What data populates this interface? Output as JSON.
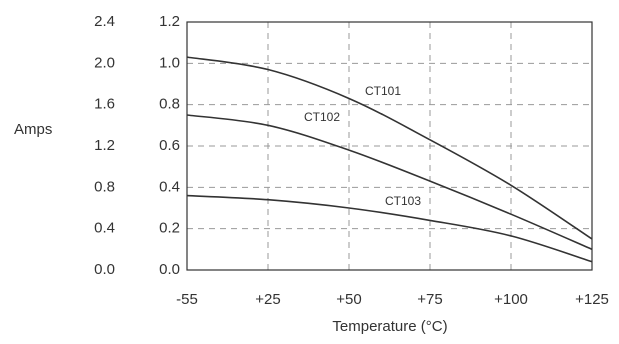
{
  "chart_data": {
    "type": "line",
    "x_label": "Temperature (°C)",
    "y_label": "Amps",
    "categories": [
      "-55",
      "+25",
      "+50",
      "+75",
      "+100",
      "+125"
    ],
    "series": [
      {
        "name": "CT101",
        "color": "#333333",
        "values": [
          1.03,
          0.97,
          0.83,
          0.63,
          0.41,
          0.15
        ]
      },
      {
        "name": "CT102",
        "color": "#333333",
        "values": [
          0.75,
          0.7,
          0.58,
          0.43,
          0.27,
          0.1
        ]
      },
      {
        "name": "CT103",
        "color": "#333333",
        "values": [
          0.36,
          0.34,
          0.3,
          0.24,
          0.165,
          0.04
        ]
      }
    ],
    "ylim": [
      0,
      1.2
    ],
    "yticks": [
      {
        "value": 0,
        "label": "0.0"
      },
      0.2,
      0.4,
      0.6,
      0.8,
      {
        "value": 1,
        "label": "1.0"
      },
      1.2
    ],
    "y2lim": [
      0,
      2.4
    ],
    "y2ticks": [
      {
        "value": 0,
        "label": "0.0"
      },
      0.4,
      0.8,
      1.2,
      1.6,
      {
        "value": 2,
        "label": "2.0"
      },
      2.4
    ],
    "grid": true
  }
}
